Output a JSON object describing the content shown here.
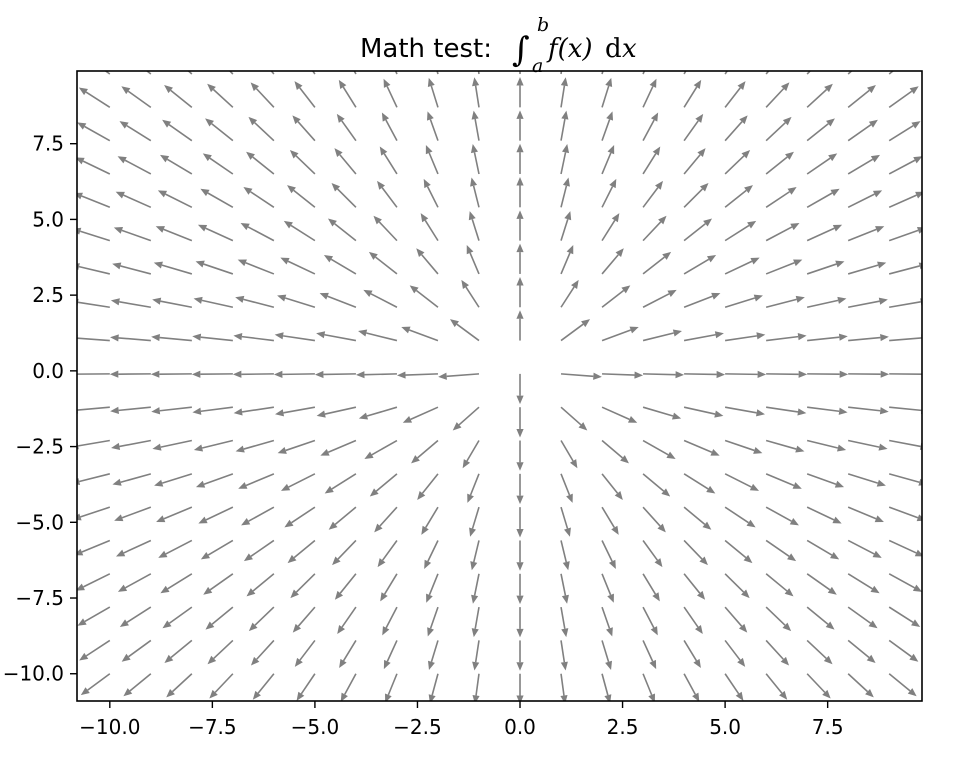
{
  "chart_data": {
    "type": "quiver",
    "title": {
      "prefix": "Math test: ",
      "integral": "∫",
      "upper_limit": "b",
      "lower_limit": "a",
      "integrand": "f(x)",
      "differential_d": "d",
      "differential_var": "x"
    },
    "xlabel": "",
    "ylabel": "",
    "xlim": [
      -10.8,
      9.8
    ],
    "ylim": [
      -10.9,
      9.9
    ],
    "x_ticks": [
      -10.0,
      -7.5,
      -5.0,
      -2.5,
      0.0,
      2.5,
      5.0,
      7.5
    ],
    "y_ticks": [
      -10.0,
      -7.5,
      -5.0,
      -2.5,
      0.0,
      2.5,
      5.0,
      7.5
    ],
    "x_tick_labels": [
      "−10.0",
      "−7.5",
      "−5.0",
      "−2.5",
      "0.0",
      "2.5",
      "5.0",
      "7.5"
    ],
    "y_tick_labels": [
      "−10.0",
      "−7.5",
      "−5.0",
      "−2.5",
      "0.0",
      "2.5",
      "5.0",
      "7.5"
    ],
    "grid": false,
    "field": {
      "description": "radial field, arrows point away from origin",
      "u": "x",
      "v": "y",
      "x_start": -10,
      "x_stop": 10,
      "x_step": 1,
      "y_start": -10,
      "y_stop": 10,
      "y_step": 1.1,
      "arrow_length": 1
    },
    "arrow_color": "#808080"
  }
}
